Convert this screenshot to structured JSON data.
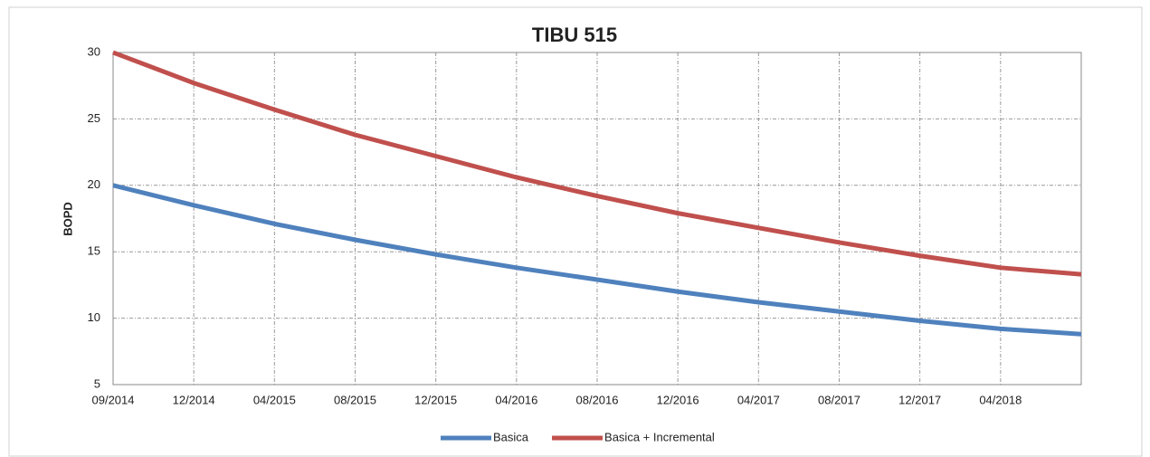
{
  "chart_data": {
    "type": "line",
    "title": "TIBU 515",
    "y_label": "BOPD",
    "categories": [
      "09/2014",
      "12/2014",
      "04/2015",
      "08/2015",
      "12/2015",
      "04/2016",
      "08/2016",
      "12/2016",
      "04/2017",
      "08/2017",
      "12/2017",
      "04/2018",
      null
    ],
    "series": [
      {
        "name": "Basica",
        "color": "#4f81bd",
        "values": [
          20,
          18.5,
          17.1,
          15.9,
          14.8,
          13.8,
          12.9,
          12.0,
          11.2,
          10.5,
          9.8,
          9.2,
          8.8
        ]
      },
      {
        "name": "Basica + Incremental",
        "color": "#c0504d",
        "values": [
          30,
          27.7,
          25.7,
          23.8,
          22.2,
          20.6,
          19.2,
          17.9,
          16.8,
          15.7,
          14.7,
          13.8,
          13.3
        ]
      }
    ],
    "ylim": [
      5,
      30
    ],
    "yticks": [
      5,
      10,
      15,
      20,
      25,
      30
    ],
    "grid": true,
    "legend": "bottom"
  }
}
